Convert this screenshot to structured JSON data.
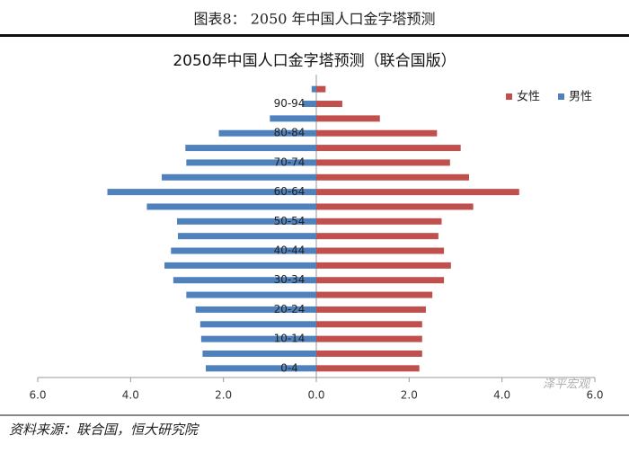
{
  "header": {
    "title": "图表8： 2050 年中国人口金字塔预测"
  },
  "chart_data": {
    "type": "pyramid",
    "title": "2050年中国人口金字塔预测（联合国版）",
    "categories": [
      "0-4",
      null,
      "10-14",
      null,
      "20-24",
      null,
      "30-34",
      null,
      "40-44",
      null,
      "50-54",
      null,
      "60-64",
      null,
      "70-74",
      null,
      "80-84",
      null,
      "90-94",
      null
    ],
    "series": [
      {
        "name": "女性",
        "color": "#c0504d",
        "values": [
          2.22,
          2.28,
          2.28,
          2.28,
          2.36,
          2.5,
          2.75,
          2.9,
          2.75,
          2.63,
          2.7,
          3.38,
          4.37,
          3.29,
          2.88,
          3.11,
          2.6,
          1.37,
          0.56,
          0.2
        ]
      },
      {
        "name": "男性",
        "color": "#4f81bd",
        "values": [
          -2.38,
          -2.45,
          -2.48,
          -2.5,
          -2.6,
          -2.8,
          -3.08,
          -3.27,
          -3.13,
          -2.98,
          -3.0,
          -3.65,
          -4.5,
          -3.33,
          -2.8,
          -2.82,
          -2.1,
          -1.0,
          -0.3,
          -0.1
        ]
      }
    ],
    "xlim": [
      -6,
      6
    ],
    "xticks": [
      {
        "value": -6,
        "label": "6.0"
      },
      {
        "value": -4,
        "label": "4.0"
      },
      {
        "value": -2,
        "label": "2.0"
      },
      {
        "value": 0,
        "label": "0.0"
      },
      {
        "value": 2,
        "label": "2.0"
      },
      {
        "value": 4,
        "label": "4.0"
      },
      {
        "value": 6,
        "label": "6.0"
      }
    ],
    "legend": "top-right"
  },
  "footer": {
    "source": "资料来源：联合国，恒大研究院",
    "watermark": "泽平宏观"
  }
}
